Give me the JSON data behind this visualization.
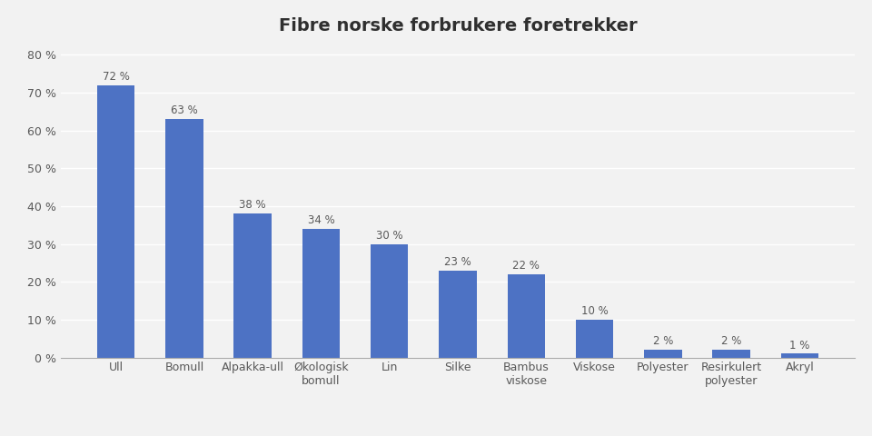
{
  "title": "Fibre norske forbrukere foretrekker",
  "categories": [
    "Ull",
    "Bomull",
    "Alpakka-ull",
    "Økologisk\nbomull",
    "Lin",
    "Silke",
    "Bambus\nviskose",
    "Viskose",
    "Polyester",
    "Resirkulert\npolyester",
    "Akryl"
  ],
  "values": [
    72,
    63,
    38,
    34,
    30,
    23,
    22,
    10,
    2,
    2,
    1
  ],
  "labels": [
    "72 %",
    "63 %",
    "38 %",
    "34 %",
    "30 %",
    "23 %",
    "22 %",
    "10 %",
    "2 %",
    "2 %",
    "1 %"
  ],
  "bar_color": "#4d72c4",
  "background_color": "#f2f2f2",
  "grid_color": "#ffffff",
  "label_color": "#595959",
  "title_color": "#2f2f2f",
  "ylim": [
    0,
    83
  ],
  "yticks": [
    0,
    10,
    20,
    30,
    40,
    50,
    60,
    70,
    80
  ],
  "ytick_labels": [
    "0 %",
    "10 %",
    "20 %",
    "30 %",
    "40 %",
    "50 %",
    "60 %",
    "70 %",
    "80 %"
  ],
  "title_fontsize": 14,
  "label_fontsize": 8.5,
  "tick_fontsize": 9,
  "bar_width": 0.55
}
